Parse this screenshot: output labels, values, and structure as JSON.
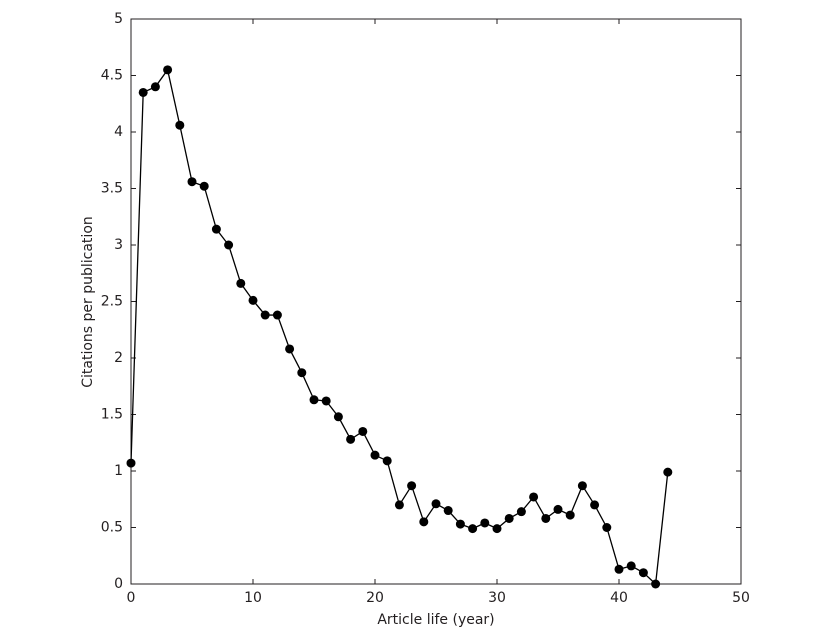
{
  "chart_data": {
    "type": "line",
    "xlabel": "Article life (year)",
    "ylabel": "Citations per publication",
    "x": [
      0,
      1,
      2,
      3,
      4,
      5,
      6,
      7,
      8,
      9,
      10,
      11,
      12,
      13,
      14,
      15,
      16,
      17,
      18,
      19,
      20,
      21,
      22,
      23,
      24,
      25,
      26,
      27,
      28,
      29,
      30,
      31,
      32,
      33,
      34,
      35,
      36,
      37,
      38,
      39,
      40,
      41,
      42,
      43,
      44
    ],
    "values": [
      1.07,
      4.35,
      4.4,
      4.55,
      4.06,
      3.56,
      3.52,
      3.14,
      3.0,
      2.66,
      2.51,
      2.38,
      2.38,
      2.08,
      1.87,
      1.63,
      1.62,
      1.48,
      1.28,
      1.35,
      1.14,
      1.09,
      0.7,
      0.87,
      0.55,
      0.71,
      0.65,
      0.53,
      0.49,
      0.54,
      0.49,
      0.58,
      0.64,
      0.77,
      0.58,
      0.66,
      0.61,
      0.87,
      0.7,
      0.5,
      0.13,
      0.16,
      0.1,
      0.0,
      0.99
    ],
    "color": "#000000",
    "xlim": [
      0,
      50
    ],
    "xticks": [
      0,
      10,
      20,
      30,
      40,
      50
    ],
    "ylim": [
      0,
      5
    ],
    "yticks": [
      0,
      0.5,
      1,
      1.5,
      2,
      2.5,
      3,
      3.5,
      4,
      4.5,
      5
    ],
    "grid": false
  }
}
